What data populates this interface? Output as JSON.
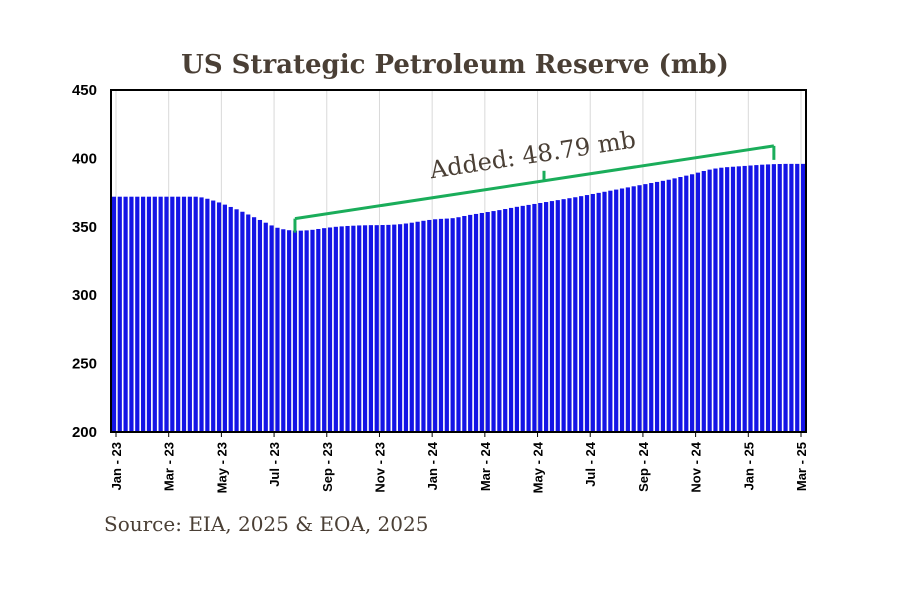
{
  "chart_data": {
    "type": "bar",
    "title": "US Strategic Petroleum Reserve  (mb)",
    "source": "Source: EIA, 2025 & EOA, 2025",
    "xlabel": "",
    "ylabel": "",
    "ylim": [
      200,
      450
    ],
    "yticks": [
      "200",
      "250",
      "300",
      "350",
      "400",
      "450"
    ],
    "xtick_labels": [
      "Jan - 23",
      "Mar - 23",
      "May - 23",
      "Jul - 23",
      "Sep - 23",
      "Nov - 23",
      "Jan - 24",
      "Mar - 24",
      "May - 24",
      "Jul - 24",
      "Sep - 24",
      "Nov - 24",
      "Jan - 25",
      "Mar - 25"
    ],
    "bar_frequency": "weekly",
    "bar_color": "#1414e6",
    "annotation": {
      "text": "Added: 48.79 mb",
      "color": "#1aad5a",
      "start_week": 31,
      "end_week": 113,
      "start_value": 347.2,
      "end_value": 396.0
    },
    "weekly_values": [
      372,
      372,
      372,
      372,
      372,
      372,
      372,
      372,
      372,
      372,
      372,
      372,
      372,
      372,
      372,
      371.5,
      370.5,
      369.2,
      367.8,
      366.2,
      364.5,
      362.8,
      361,
      359,
      357,
      355,
      353,
      351,
      349.3,
      348.2,
      347.5,
      347.2,
      347.2,
      347.4,
      347.8,
      348.4,
      349,
      349.5,
      350,
      350.3,
      350.6,
      350.8,
      351,
      351.1,
      351.2,
      351.2,
      351.3,
      351.4,
      351.6,
      351.9,
      352.4,
      353,
      353.7,
      354.4,
      355,
      355.5,
      355.8,
      356,
      356.3,
      357,
      357.9,
      358.7,
      359.4,
      360.1,
      360.8,
      361.5,
      362.2,
      363,
      363.8,
      364.6,
      365.3,
      366,
      366.7,
      367.4,
      368.1,
      368.8,
      369.5,
      370.2,
      370.9,
      371.6,
      372.4,
      373.2,
      374,
      374.8,
      375.6,
      376.4,
      377.2,
      378,
      378.8,
      379.6,
      380.4,
      381.2,
      382,
      382.8,
      383.6,
      384.4,
      385.4,
      386.4,
      387.4,
      388.4,
      389.6,
      390.8,
      391.8,
      392.6,
      393.2,
      393.6,
      393.9,
      394.2,
      394.5,
      394.8,
      395.1,
      395.4,
      395.6,
      395.8,
      395.9,
      396,
      396,
      396,
      396
    ]
  }
}
